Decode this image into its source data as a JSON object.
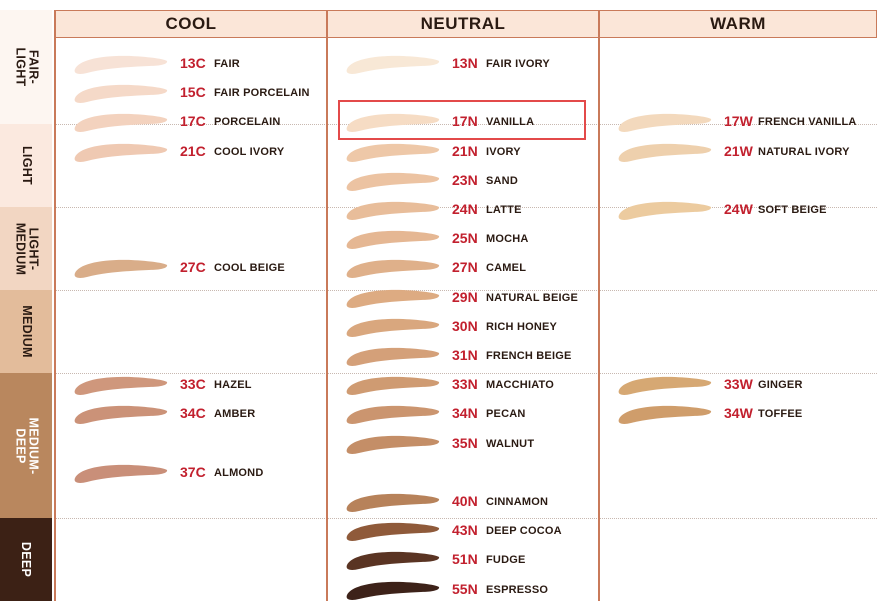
{
  "chart_data": {
    "type": "table",
    "columns": [
      "COOL",
      "NEUTRAL",
      "WARM"
    ],
    "bands": [
      {
        "label": "FAIR-\nLIGHT",
        "color": "#fdf6f1",
        "text_color": "#2a1a12"
      },
      {
        "label": "LIGHT",
        "color": "#fbe9df",
        "text_color": "#2a1a12"
      },
      {
        "label": "LIGHT-\nMEDIUM",
        "color": "#f2d6c2",
        "text_color": "#2a1a12"
      },
      {
        "label": "MEDIUM",
        "color": "#e3bc9b",
        "text_color": "#2a1a12"
      },
      {
        "label": "MEDIUM-\nDEEP",
        "color": "#b9875e",
        "text_color": "#ffffff"
      },
      {
        "label": "DEEP",
        "color": "#3c2115",
        "text_color": "#ffffff"
      }
    ],
    "shades": [
      {
        "column": "COOL",
        "row": 0,
        "code": "13C",
        "name": "FAIR",
        "color": "#f7e2d6"
      },
      {
        "column": "COOL",
        "row": 1,
        "code": "15C",
        "name": "FAIR PORCELAIN",
        "color": "#f5d9c8"
      },
      {
        "column": "COOL",
        "row": 2,
        "code": "17C",
        "name": "PORCELAIN",
        "color": "#f3d2be"
      },
      {
        "column": "COOL",
        "row": 3,
        "code": "21C",
        "name": "COOL IVORY",
        "color": "#efc9b2"
      },
      {
        "column": "COOL",
        "row": 7,
        "code": "27C",
        "name": "COOL BEIGE",
        "color": "#d9ad89"
      },
      {
        "column": "COOL",
        "row": 11,
        "code": "33C",
        "name": "HAZEL",
        "color": "#cf977c"
      },
      {
        "column": "COOL",
        "row": 12,
        "code": "34C",
        "name": "AMBER",
        "color": "#cb9278"
      },
      {
        "column": "COOL",
        "row": 14,
        "code": "37C",
        "name": "ALMOND",
        "color": "#c98f79"
      },
      {
        "column": "NEUTRAL",
        "row": 0,
        "code": "13N",
        "name": "FAIR IVORY",
        "color": "#f8e8d6"
      },
      {
        "column": "NEUTRAL",
        "row": 2,
        "code": "17N",
        "name": "VANILLA",
        "color": "#f6dcc4"
      },
      {
        "column": "NEUTRAL",
        "row": 3,
        "code": "21N",
        "name": "IVORY",
        "color": "#eec8a8"
      },
      {
        "column": "NEUTRAL",
        "row": 4,
        "code": "23N",
        "name": "SAND",
        "color": "#ecc3a2"
      },
      {
        "column": "NEUTRAL",
        "row": 5,
        "code": "24N",
        "name": "LATTE",
        "color": "#e8bd9a"
      },
      {
        "column": "NEUTRAL",
        "row": 6,
        "code": "25N",
        "name": "MOCHA",
        "color": "#e5b793"
      },
      {
        "column": "NEUTRAL",
        "row": 7,
        "code": "27N",
        "name": "CAMEL",
        "color": "#dfb08a"
      },
      {
        "column": "NEUTRAL",
        "row": 8,
        "code": "29N",
        "name": "NATURAL BEIGE",
        "color": "#ddab82"
      },
      {
        "column": "NEUTRAL",
        "row": 9,
        "code": "30N",
        "name": "RICH HONEY",
        "color": "#d9a77e"
      },
      {
        "column": "NEUTRAL",
        "row": 10,
        "code": "31N",
        "name": "FRENCH BEIGE",
        "color": "#d4a079"
      },
      {
        "column": "NEUTRAL",
        "row": 11,
        "code": "33N",
        "name": "MACCHIATO",
        "color": "#cf9b72"
      },
      {
        "column": "NEUTRAL",
        "row": 12,
        "code": "34N",
        "name": "PECAN",
        "color": "#cb956f"
      },
      {
        "column": "NEUTRAL",
        "row": 13,
        "code": "35N",
        "name": "WALNUT",
        "color": "#c48e67"
      },
      {
        "column": "NEUTRAL",
        "row": 15,
        "code": "40N",
        "name": "CINNAMON",
        "color": "#b7825a"
      },
      {
        "column": "NEUTRAL",
        "row": 16,
        "code": "43N",
        "name": "DEEP COCOA",
        "color": "#8f5a3a"
      },
      {
        "column": "NEUTRAL",
        "row": 17,
        "code": "51N",
        "name": "FUDGE",
        "color": "#5a3423"
      },
      {
        "column": "NEUTRAL",
        "row": 18,
        "code": "55N",
        "name": "ESPRESSO",
        "color": "#3d2219"
      },
      {
        "column": "WARM",
        "row": 2,
        "code": "17W",
        "name": "FRENCH VANILLA",
        "color": "#f3d9bd"
      },
      {
        "column": "WARM",
        "row": 3,
        "code": "21W",
        "name": "NATURAL IVORY",
        "color": "#eed0ad"
      },
      {
        "column": "WARM",
        "row": 5,
        "code": "24W",
        "name": "SOFT BEIGE",
        "color": "#eccb9f"
      },
      {
        "column": "WARM",
        "row": 11,
        "code": "33W",
        "name": "GINGER",
        "color": "#d6a873"
      },
      {
        "column": "WARM",
        "row": 12,
        "code": "34W",
        "name": "TOFFEE",
        "color": "#cf9d6b"
      }
    ],
    "highlighted": "17N"
  }
}
